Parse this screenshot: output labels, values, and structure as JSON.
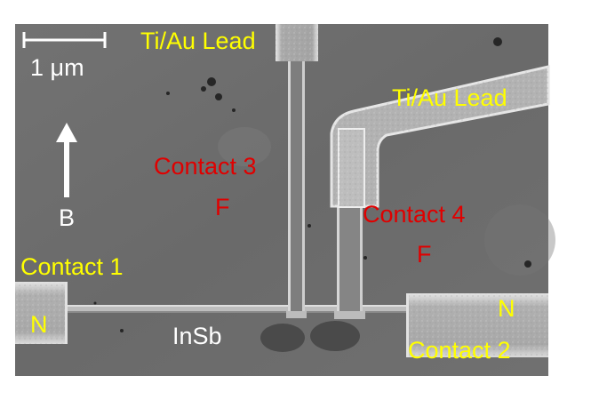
{
  "image": {
    "scale_bar": {
      "label": "1 μm"
    },
    "field_label": "B",
    "labels": {
      "lead_top": "Ti/Au Lead",
      "lead_right": "Ti/Au Lead",
      "contact1": "Contact 1",
      "contact2": "Contact 2",
      "contact3": "Contact 3",
      "contact4": "Contact 4",
      "n_left": "N",
      "n_right": "N",
      "f_contact3": "F",
      "f_contact4": "F",
      "nanowire": "InSb"
    },
    "colors": {
      "yellow": "#ffff00",
      "red": "#e00000",
      "white": "#ffffff",
      "background": "#6e6e6e"
    }
  }
}
